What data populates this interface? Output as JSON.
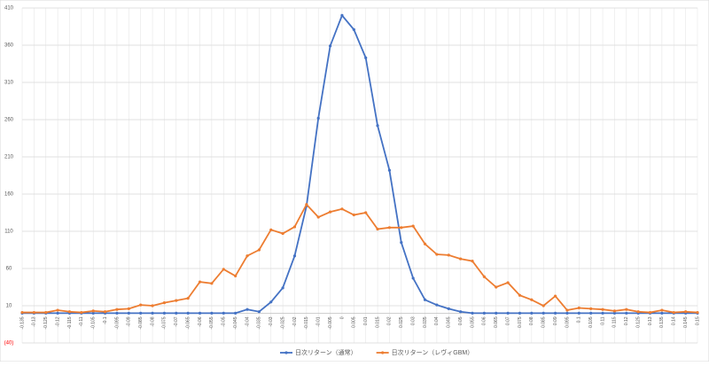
{
  "chart_data": {
    "type": "line",
    "categories": [
      -0.135,
      -0.13,
      -0.125,
      -0.12,
      -0.115,
      -0.11,
      -0.105,
      -0.1,
      -0.095,
      -0.09,
      -0.085,
      -0.08,
      -0.075,
      -0.07,
      -0.065,
      -0.06,
      -0.055,
      -0.05,
      -0.045,
      -0.04,
      -0.035,
      -0.03,
      -0.025,
      -0.02,
      -0.015,
      -0.01,
      -0.005,
      0,
      0.005,
      0.01,
      0.015,
      0.02,
      0.025,
      0.03,
      0.035,
      0.04,
      0.045,
      0.05,
      0.055,
      0.06,
      0.065,
      0.07,
      0.075,
      0.08,
      0.085,
      0.09,
      0.095,
      0.1,
      0.105,
      0.11,
      0.115,
      0.12,
      0.125,
      0.13,
      0.135,
      0.14,
      0.145,
      0.15
    ],
    "series": [
      {
        "name": "日次リターン（通常）",
        "color": "#4472c4",
        "values": [
          0,
          0,
          0,
          0,
          0,
          0,
          0,
          0,
          0,
          0,
          0,
          0,
          0,
          0,
          0,
          0,
          0,
          0,
          0,
          5,
          2,
          15,
          34,
          77,
          144,
          262,
          359,
          400,
          381,
          343,
          252,
          192,
          95,
          47,
          18,
          11,
          6,
          2,
          0,
          0,
          0,
          0,
          0,
          0,
          0,
          0,
          0,
          0,
          0,
          0,
          0,
          0,
          0,
          0,
          0,
          0,
          0,
          0
        ]
      },
      {
        "name": "日次リターン（レヴィGBM）",
        "color": "#ed7d31",
        "values": [
          1,
          1,
          1,
          4,
          2,
          1,
          3,
          2,
          5,
          6,
          11,
          10,
          14,
          17,
          20,
          42,
          40,
          59,
          50,
          77,
          85,
          112,
          107,
          116,
          146,
          129,
          136,
          140,
          132,
          135,
          113,
          115,
          115,
          117,
          93,
          79,
          78,
          73,
          70,
          49,
          35,
          41,
          24,
          18,
          10,
          23,
          4,
          7,
          6,
          5,
          3,
          5,
          2,
          1,
          4,
          1,
          2,
          1
        ]
      }
    ],
    "ylim": [
      -40,
      410
    ],
    "yticks": [
      {
        "value": -40,
        "label": "(40)"
      },
      10,
      60,
      110,
      160,
      210,
      260,
      310,
      360,
      410
    ],
    "grid": true,
    "legend": "bottom"
  }
}
